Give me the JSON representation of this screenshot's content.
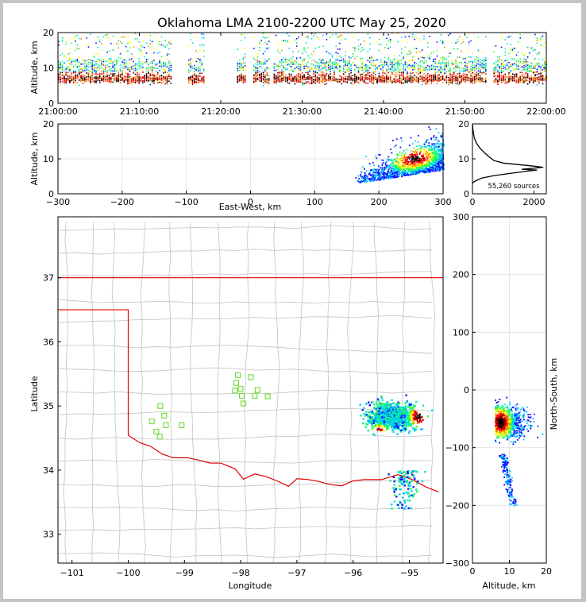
{
  "chart_data": {
    "type": "scatter",
    "title": "Oklahoma LMA 2100-2200 UTC May 25, 2020",
    "time_panel": {
      "ylabel": "Altitude, km",
      "ylim": [
        0,
        20
      ],
      "yticks": [
        "0",
        "10",
        "20"
      ],
      "xticks": [
        "21:00:00",
        "21:10:00",
        "21:20:00",
        "21:30:00",
        "21:40:00",
        "21:50:00",
        "22:00:00"
      ],
      "active_minutes": [
        [
          0,
          14
        ],
        [
          16,
          18
        ],
        [
          22,
          23
        ],
        [
          24,
          26
        ],
        [
          26.5,
          52.5
        ],
        [
          53.5,
          60
        ]
      ]
    },
    "ew_panel": {
      "ylabel": "Altitude, km",
      "xlabel": "East-West, km",
      "xlim": [
        -300,
        300
      ],
      "ylim": [
        0,
        20
      ],
      "xticks": [
        "−300",
        "−200",
        "−100",
        "0",
        "100",
        "200",
        "300"
      ],
      "yticks": [
        "0",
        "10",
        "20"
      ]
    },
    "histogram": {
      "xticks": [
        "0",
        "2000"
      ],
      "yticks": [
        "0",
        "10",
        "20"
      ],
      "xlim": [
        0,
        2400
      ],
      "ylim": [
        0,
        20
      ],
      "annotation": "55,260 sources",
      "profile": [
        [
          0,
          3
        ],
        [
          60,
          3.5
        ],
        [
          300,
          4.5
        ],
        [
          700,
          5.2
        ],
        [
          1200,
          5.8
        ],
        [
          1800,
          6.5
        ],
        [
          2100,
          6.8
        ],
        [
          1600,
          7.0
        ],
        [
          2300,
          7.6
        ],
        [
          1900,
          8.0
        ],
        [
          1000,
          8.8
        ],
        [
          700,
          9.5
        ],
        [
          550,
          10.5
        ],
        [
          420,
          11.5
        ],
        [
          250,
          13
        ],
        [
          130,
          14.5
        ],
        [
          60,
          16
        ],
        [
          20,
          18
        ],
        [
          0,
          20
        ]
      ]
    },
    "map_panel": {
      "xlabel": "Longitude",
      "ylabel": "Latitude",
      "xlim": [
        -101.25,
        -94.4
      ],
      "ylim": [
        32.55,
        37.95
      ],
      "xticks": [
        "−101",
        "−100",
        "−99",
        "−98",
        "−97",
        "−96",
        "−95"
      ],
      "yticks": [
        "33",
        "34",
        "35",
        "36",
        "37"
      ],
      "stations": [
        [
          -98.05,
          35.48
        ],
        [
          -98.08,
          35.36
        ],
        [
          -98.0,
          35.27
        ],
        [
          -98.1,
          35.24
        ],
        [
          -97.82,
          35.45
        ],
        [
          -97.98,
          35.16
        ],
        [
          -97.95,
          35.04
        ],
        [
          -97.75,
          35.16
        ],
        [
          -97.7,
          35.25
        ],
        [
          -97.52,
          35.15
        ],
        [
          -99.43,
          35.0
        ],
        [
          -99.36,
          34.85
        ],
        [
          -99.58,
          34.76
        ],
        [
          -99.33,
          34.7
        ],
        [
          -99.05,
          34.7
        ],
        [
          -99.5,
          34.6
        ],
        [
          -99.44,
          34.52
        ]
      ]
    },
    "ns_panel": {
      "xlabel": "Altitude, km",
      "ylabel": "North-South, km",
      "xlim": [
        0,
        20
      ],
      "ylim": [
        -300,
        300
      ],
      "xticks": [
        "0",
        "10",
        "20"
      ],
      "yticks": [
        "−300",
        "−200",
        "−100",
        "0",
        "100",
        "200",
        "300"
      ]
    },
    "colormap": [
      "#ffffff",
      "#1010ff",
      "#00c8ff",
      "#00f0a0",
      "#30ff30",
      "#ffff00",
      "#ff8000",
      "#ff0000",
      "#a00000",
      "#000000"
    ]
  }
}
